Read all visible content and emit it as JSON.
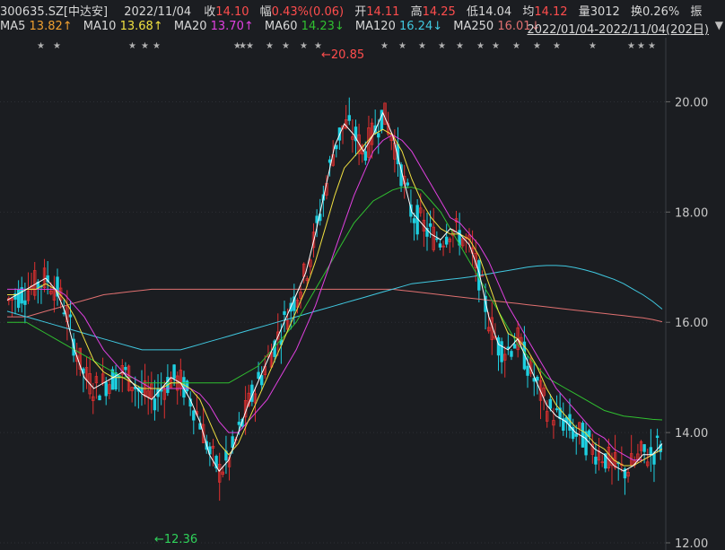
{
  "header": {
    "code": "300635.SZ[中达安]",
    "date": "2022/11/04",
    "close_label": "收",
    "close": "14.10",
    "change_label": "幅",
    "change": "0.43%(0.06)",
    "open_label": "开",
    "open": "14.11",
    "high_label": "高",
    "high": "14.25",
    "low_label": "低",
    "low": "14.04",
    "avg_label": "均",
    "avg": "14.12",
    "vol_label": "量",
    "vol": "3012",
    "turnover_label": "换",
    "turnover": "0.26%",
    "amp_label": "振"
  },
  "ma_bar": {
    "ma5_label": "MA5",
    "ma5": "13.82↑",
    "ma10_label": "MA10",
    "ma10": "13.68↑",
    "ma20_label": "MA20",
    "ma20": "13.70↑",
    "ma60_label": "MA60",
    "ma60": "14.23↓",
    "ma120_label": "MA120",
    "ma120": "16.24↓",
    "ma250_label": "MA250",
    "ma250": "16.01↓",
    "range": "2022/01/04-2022/11/04(202日)",
    "range_arrow_icon": "triangle-down-icon"
  },
  "colors": {
    "background": "#1b1d21",
    "up": "#e03030",
    "down": "#1ecfe0",
    "ma5": "#ffffff",
    "ma10": "#f0e040",
    "ma20": "#e040e0",
    "ma60": "#30c030",
    "ma120": "#40c8e0",
    "ma250": "#e07070"
  },
  "chart_data": {
    "type": "candlestick",
    "y_ticks": [
      "20.00",
      "18.00",
      "16.00",
      "14.00",
      "12.00"
    ],
    "ylim": [
      12,
      20.85
    ],
    "max_annotation": "←20.85",
    "min_annotation": "←12.36",
    "max_value": 20.85,
    "min_value": 12.36,
    "star_marker": "★",
    "ma_lines": {
      "ma5": [
        16.4,
        16.5,
        16.6,
        16.7,
        16.8,
        16.6,
        16.2,
        15.5,
        15.0,
        14.8,
        14.9,
        15.0,
        15.1,
        14.9,
        14.7,
        14.6,
        14.8,
        15.0,
        14.9,
        14.6,
        14.2,
        13.6,
        13.3,
        13.5,
        14.0,
        14.5,
        14.9,
        15.3,
        15.7,
        16.1,
        16.5,
        16.9,
        17.6,
        18.4,
        19.2,
        19.6,
        19.4,
        19.1,
        19.4,
        19.8,
        19.4,
        18.7,
        18.0,
        17.8,
        17.6,
        17.5,
        17.7,
        17.6,
        17.4,
        16.9,
        16.1,
        15.6,
        15.5,
        15.7,
        15.3,
        14.9,
        14.5,
        14.3,
        14.2,
        14.0,
        13.9,
        13.7,
        13.6,
        13.4,
        13.3,
        13.4,
        13.6,
        13.6,
        13.8
      ],
      "ma10": [
        16.5,
        16.5,
        16.6,
        16.6,
        16.7,
        16.6,
        16.4,
        16.1,
        15.7,
        15.3,
        15.1,
        15.0,
        15.0,
        14.9,
        14.8,
        14.8,
        14.8,
        14.9,
        14.9,
        14.8,
        14.6,
        14.2,
        13.8,
        13.6,
        13.8,
        14.2,
        14.6,
        15.0,
        15.4,
        15.8,
        16.2,
        16.6,
        17.1,
        17.7,
        18.3,
        18.8,
        19.0,
        19.2,
        19.4,
        19.5,
        19.4,
        19.1,
        18.6,
        18.2,
        17.9,
        17.7,
        17.6,
        17.6,
        17.5,
        17.2,
        16.7,
        16.2,
        15.8,
        15.7,
        15.5,
        15.2,
        14.8,
        14.5,
        14.3,
        14.1,
        14.0,
        13.8,
        13.7,
        13.5,
        13.4,
        13.4,
        13.5,
        13.6,
        13.7
      ],
      "ma20": [
        16.6,
        16.6,
        16.6,
        16.6,
        16.6,
        16.6,
        16.5,
        16.3,
        16.1,
        15.8,
        15.5,
        15.3,
        15.1,
        15.0,
        14.9,
        14.8,
        14.8,
        14.8,
        14.8,
        14.8,
        14.7,
        14.5,
        14.2,
        14.0,
        14.0,
        14.2,
        14.4,
        14.6,
        14.9,
        15.2,
        15.5,
        15.9,
        16.3,
        16.8,
        17.3,
        17.8,
        18.3,
        18.7,
        19.1,
        19.3,
        19.4,
        19.3,
        19.1,
        18.8,
        18.5,
        18.2,
        17.9,
        17.8,
        17.6,
        17.4,
        17.1,
        16.7,
        16.3,
        16.0,
        15.7,
        15.4,
        15.1,
        14.8,
        14.6,
        14.4,
        14.2,
        14.0,
        13.9,
        13.7,
        13.6,
        13.5,
        13.5,
        13.6,
        13.7
      ],
      "ma60": [
        16.0,
        16.0,
        16.0,
        15.9,
        15.8,
        15.7,
        15.6,
        15.5,
        15.4,
        15.3,
        15.2,
        15.1,
        15.0,
        15.0,
        14.9,
        14.9,
        14.9,
        14.9,
        14.9,
        14.9,
        14.9,
        14.9,
        14.9,
        14.9,
        15.0,
        15.1,
        15.2,
        15.4,
        15.6,
        15.8,
        16.0,
        16.3,
        16.6,
        16.9,
        17.2,
        17.5,
        17.8,
        18.0,
        18.2,
        18.3,
        18.4,
        18.45,
        18.45,
        18.4,
        18.2,
        18.0,
        17.7,
        17.4,
        17.1,
        16.8,
        16.5,
        16.2,
        15.9,
        15.6,
        15.4,
        15.2,
        15.0,
        14.9,
        14.8,
        14.7,
        14.6,
        14.5,
        14.4,
        14.35,
        14.3,
        14.28,
        14.26,
        14.24,
        14.23
      ],
      "ma120": [
        16.2,
        16.15,
        16.1,
        16.05,
        16.0,
        15.95,
        15.9,
        15.85,
        15.8,
        15.75,
        15.7,
        15.65,
        15.6,
        15.55,
        15.5,
        15.5,
        15.5,
        15.5,
        15.5,
        15.55,
        15.6,
        15.65,
        15.7,
        15.75,
        15.8,
        15.85,
        15.9,
        15.95,
        16.0,
        16.05,
        16.1,
        16.15,
        16.2,
        16.25,
        16.3,
        16.35,
        16.4,
        16.45,
        16.5,
        16.55,
        16.6,
        16.65,
        16.7,
        16.72,
        16.74,
        16.76,
        16.78,
        16.8,
        16.82,
        16.85,
        16.88,
        16.91,
        16.94,
        16.97,
        17.0,
        17.02,
        17.03,
        17.03,
        17.02,
        16.99,
        16.95,
        16.9,
        16.84,
        16.78,
        16.7,
        16.6,
        16.5,
        16.38,
        16.24
      ],
      "ma250": [
        16.1,
        16.1,
        16.1,
        16.15,
        16.2,
        16.25,
        16.3,
        16.35,
        16.4,
        16.45,
        16.5,
        16.52,
        16.54,
        16.56,
        16.58,
        16.6,
        16.6,
        16.6,
        16.6,
        16.6,
        16.6,
        16.6,
        16.6,
        16.6,
        16.6,
        16.6,
        16.6,
        16.6,
        16.6,
        16.6,
        16.6,
        16.6,
        16.6,
        16.6,
        16.6,
        16.6,
        16.6,
        16.6,
        16.6,
        16.6,
        16.6,
        16.58,
        16.56,
        16.54,
        16.52,
        16.5,
        16.48,
        16.46,
        16.44,
        16.42,
        16.4,
        16.38,
        16.36,
        16.34,
        16.32,
        16.3,
        16.28,
        16.26,
        16.24,
        16.22,
        16.2,
        16.18,
        16.16,
        16.14,
        16.12,
        16.1,
        16.08,
        16.05,
        16.01
      ]
    }
  }
}
